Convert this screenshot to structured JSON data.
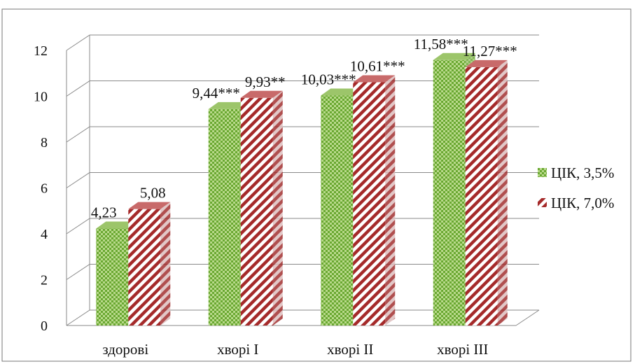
{
  "colors": {
    "series1_base": "#b8d98a",
    "series1_check": "#6aa832",
    "series2_base": "#ffffff",
    "series2_stripe": "#a52a2a",
    "grid": "#8a8a8a",
    "frame": "#777777"
  },
  "chart_data": {
    "type": "bar",
    "title": "",
    "xlabel": "",
    "ylabel": "",
    "ylim": [
      0,
      12
    ],
    "yticks": [
      "0",
      "2",
      "4",
      "6",
      "8",
      "10",
      "12"
    ],
    "grid": true,
    "legend_position": "right",
    "categories": [
      "здорові",
      "хворі I",
      "хворі II",
      "хворі III"
    ],
    "series": [
      {
        "name": "ЦІК, 3,5%",
        "values": [
          4.23,
          9.44,
          10.03,
          11.58
        ],
        "labels": [
          "4,23",
          "9,44***",
          "10,03***",
          "11,58***"
        ]
      },
      {
        "name": "ЦІК, 7,0%",
        "values": [
          5.08,
          9.93,
          10.61,
          11.27
        ],
        "labels": [
          "5,08",
          "9,93**",
          "10,61***",
          "11,27***"
        ]
      }
    ]
  }
}
